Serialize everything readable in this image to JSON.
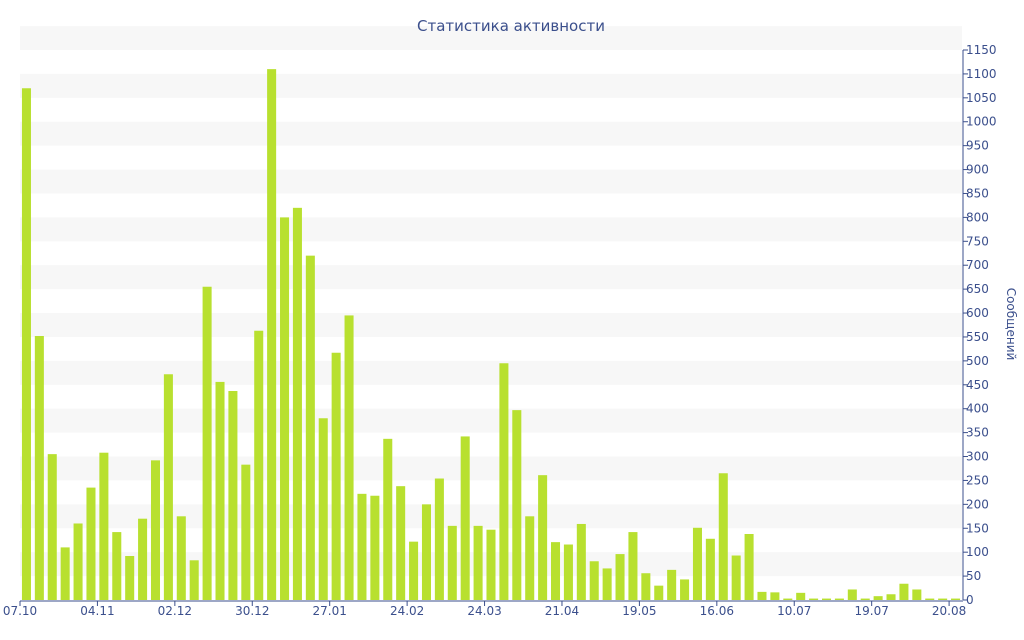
{
  "chart_data": {
    "type": "bar",
    "title": "Статистика активности",
    "ylabel": "Сообщений",
    "ylim": [
      0,
      1150
    ],
    "y_ticks": [
      0,
      50,
      100,
      150,
      200,
      250,
      300,
      350,
      400,
      450,
      500,
      550,
      600,
      650,
      700,
      750,
      800,
      850,
      900,
      950,
      1000,
      1050,
      1100,
      1150
    ],
    "y_axis_side": "right",
    "grid": "horizontal-bands",
    "x_tick_labels": [
      {
        "index": 0,
        "label": "07.10"
      },
      {
        "index": 6,
        "label": "04.11"
      },
      {
        "index": 12,
        "label": "02.12"
      },
      {
        "index": 18,
        "label": "30.12"
      },
      {
        "index": 24,
        "label": "27.01"
      },
      {
        "index": 30,
        "label": "24.02"
      },
      {
        "index": 36,
        "label": "24.03"
      },
      {
        "index": 42,
        "label": "21.04"
      },
      {
        "index": 48,
        "label": "19.05"
      },
      {
        "index": 54,
        "label": "16.06"
      },
      {
        "index": 60,
        "label": "10.07"
      },
      {
        "index": 66,
        "label": "19.07"
      },
      {
        "index": 72,
        "label": "20.08"
      }
    ],
    "values": [
      1070,
      552,
      305,
      110,
      160,
      235,
      308,
      142,
      92,
      170,
      292,
      472,
      175,
      83,
      655,
      456,
      437,
      283,
      563,
      1110,
      800,
      820,
      720,
      380,
      517,
      595,
      222,
      218,
      337,
      238,
      122,
      200,
      254,
      155,
      342,
      155,
      147,
      495,
      397,
      175,
      261,
      121,
      116,
      159,
      81,
      66,
      96,
      142,
      56,
      30,
      63,
      43,
      151,
      128,
      265,
      93,
      138,
      17,
      16,
      3,
      15,
      3,
      3,
      3,
      22,
      3,
      8,
      12,
      34,
      22,
      3,
      3,
      3
    ]
  },
  "colors": {
    "bar": "#b8e02f",
    "text": "#3b4f8c",
    "band": "#f7f7f7"
  }
}
